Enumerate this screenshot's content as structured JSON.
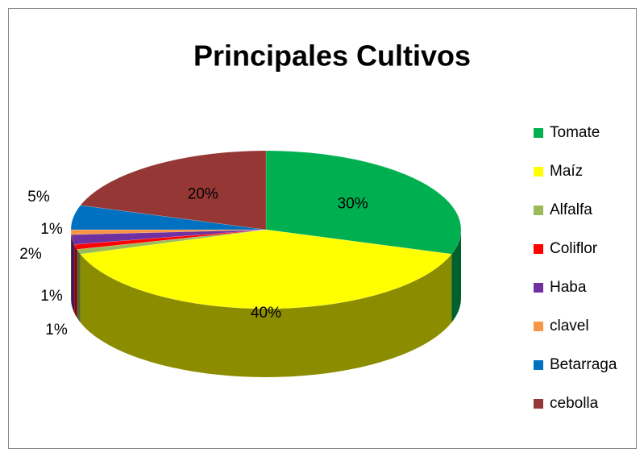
{
  "chart_data": {
    "type": "pie",
    "title": "Principales Cultivos",
    "categories": [
      "Tomate",
      "Maíz",
      "Alfalfa",
      "Coliflor",
      "Haba",
      "clavel",
      "Betarraga",
      "cebolla"
    ],
    "values": [
      30,
      40,
      1,
      1,
      2,
      1,
      5,
      20
    ],
    "value_labels": [
      "30%",
      "40%",
      "1%",
      "1%",
      "2%",
      "1%",
      "5%",
      "20%"
    ],
    "colors": [
      "#00b050",
      "#ffff00",
      "#9bbb59",
      "#ff0000",
      "#7030a0",
      "#f79646",
      "#0070c0",
      "#953735"
    ],
    "legend": "right"
  }
}
